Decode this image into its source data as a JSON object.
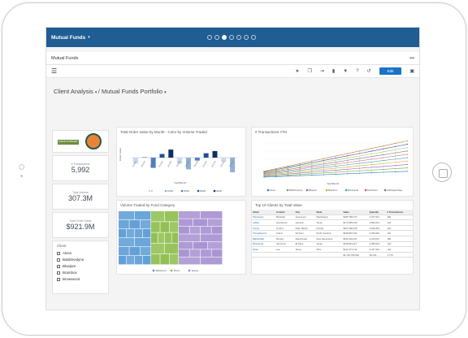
{
  "header": {
    "title": "Mutual Funds",
    "dropdown_caret": "▾",
    "page_dots": 7,
    "active_dot": 2
  },
  "subheader": {
    "tab": "Mutual Funds",
    "more": "•••"
  },
  "toolbar": {
    "edit_label": "Edit"
  },
  "breadcrumb": {
    "first": "Client Analysis",
    "sep": "/",
    "second": "Mutual Funds Portfolio"
  },
  "logo": {
    "banner_text": "GRAND FORWARD"
  },
  "kpis": [
    {
      "label": "# Transactions",
      "value": "5,992"
    },
    {
      "label": "Total Volume",
      "value": "307.3M"
    },
    {
      "label": "Total Order Value",
      "value": "$921.9M"
    }
  ],
  "client_filter": {
    "title": "Client",
    "items": [
      "Alves",
      "Babbleodyne",
      "Bluejam",
      "Brainbox",
      "Browsecat"
    ]
  },
  "panels": {
    "order_value_title": "Total Order Value by Month - Color by Volume Traded",
    "transactions_title": "# Transactions YTD",
    "treemap_title": "Volume Traded by Fund Category",
    "top10_title": "Top 10 Clients by Total Value"
  },
  "legend_volume": [
    "0",
    "100M",
    "200M",
    "300M",
    "400M"
  ],
  "legend_tx": [
    "Alves",
    "Babbleodyne",
    "Bluejam",
    "Brainbox",
    "Browsecat",
    "Buzzbean",
    "Cabbagebridge"
  ],
  "treemap_legend": [
    "Balanced",
    "Bond",
    "Equity"
  ],
  "colors": {
    "balanced": "#5b9bd5",
    "bond": "#8dbd4a",
    "equity": "#a58fd0",
    "accent": "#1f5d93"
  },
  "table": {
    "headers": [
      "Client",
      "Contact",
      "City",
      "State",
      "Value",
      "Quantity",
      "# Transactions"
    ],
    "rows": [
      [
        "Photospan",
        "Marshall",
        "Vancouver",
        "Washington",
        "$185,789,372",
        "4,077,611",
        "184"
      ],
      [
        "Jabbie",
        "Henderson",
        "Houston",
        "Texas",
        "$173,865,030",
        "3,866,014",
        "142"
      ],
      [
        "Twinte",
        "Gordon",
        "Palm Beach",
        "Florida",
        "$167,920,618",
        "3,599,361",
        "143"
      ],
      [
        "Thoughtstorm",
        "Arlens",
        "Durham",
        "North Carolina",
        "$158,807,224",
        "3,459,981",
        "131"
      ],
      [
        "Babbleblab",
        "Murphy",
        "Manchester",
        "New Hampshire",
        "$152,404,421",
        "3,444,027",
        "150"
      ],
      [
        "Browsecat",
        "Simmons",
        "El Paso",
        "Texas",
        "$148,843,117",
        "3,385,024",
        "134"
      ],
      [
        "Midel",
        "Lee",
        "Akron",
        "Ohio",
        "$142,271,714",
        "3,337,312",
        "142"
      ]
    ],
    "totals": [
      "",
      "",
      "",
      "",
      "$1,763,766,594",
      "38,123,…",
      "1,779"
    ]
  },
  "chart_data": [
    {
      "type": "bar",
      "title": "Total Order Value by Month - Color by Volume Traded",
      "xlabel": "Year/Month",
      "ylabel": "Order Value",
      "categories": [
        "201501",
        "201502",
        "201503",
        "201504",
        "201505",
        "201506",
        "201507",
        "201508",
        "201509",
        "201510",
        "201511",
        "201512"
      ],
      "values": [
        -8,
        1,
        -14,
        5,
        11,
        -8,
        -16,
        -4,
        6,
        9,
        -6,
        -20
      ]
    },
    {
      "type": "line",
      "title": "# Transactions YTD",
      "xlabel": "Year/Month",
      "ylabel": "# Transactions",
      "ylim": [
        0,
        800
      ]
    }
  ]
}
